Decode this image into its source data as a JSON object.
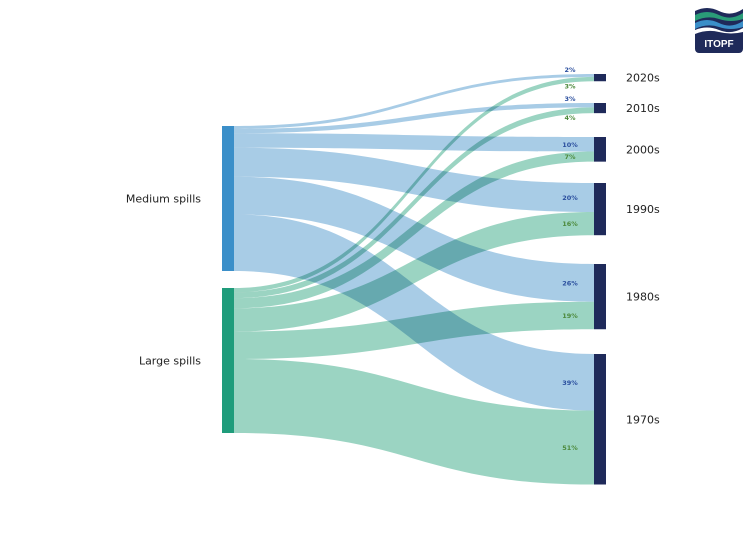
{
  "logo": {
    "text": "ITOPF"
  },
  "colors": {
    "medium_node": "#3b8fc9",
    "large_node": "#1f9c7b",
    "target_node": "#1f2a5a",
    "medium_link": "#9fc7e3",
    "large_link": "#90cfbb",
    "medium_label": "#2b4f9e",
    "large_label": "#4d8a3c"
  },
  "chart_data": {
    "type": "sankey",
    "sources": [
      "Medium spills",
      "Large spills"
    ],
    "targets": [
      "2020s",
      "2010s",
      "2000s",
      "1990s",
      "1980s",
      "1970s"
    ],
    "links": [
      {
        "source": "Medium spills",
        "target": "2020s",
        "value": 2,
        "label": "2%"
      },
      {
        "source": "Medium spills",
        "target": "2010s",
        "value": 3,
        "label": "3%"
      },
      {
        "source": "Medium spills",
        "target": "2000s",
        "value": 10,
        "label": "10%"
      },
      {
        "source": "Medium spills",
        "target": "1990s",
        "value": 20,
        "label": "20%"
      },
      {
        "source": "Medium spills",
        "target": "1980s",
        "value": 26,
        "label": "26%"
      },
      {
        "source": "Medium spills",
        "target": "1970s",
        "value": 39,
        "label": "39%"
      },
      {
        "source": "Large spills",
        "target": "2020s",
        "value": 3,
        "label": "3%"
      },
      {
        "source": "Large spills",
        "target": "2010s",
        "value": 4,
        "label": "4%"
      },
      {
        "source": "Large spills",
        "target": "2000s",
        "value": 7,
        "label": "7%"
      },
      {
        "source": "Large spills",
        "target": "1990s",
        "value": 16,
        "label": "16%"
      },
      {
        "source": "Large spills",
        "target": "1980s",
        "value": 19,
        "label": "19%"
      },
      {
        "source": "Large spills",
        "target": "1970s",
        "value": 51,
        "label": "51%"
      }
    ]
  }
}
